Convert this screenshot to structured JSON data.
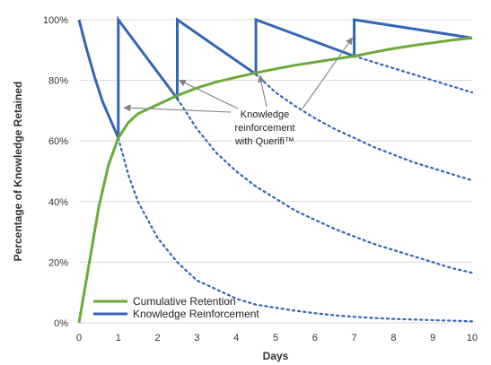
{
  "chart_data": {
    "type": "line",
    "title": "",
    "xlabel": "Days",
    "ylabel": "Percentage of Knowledge Retained",
    "xlim": [
      0,
      10
    ],
    "ylim": [
      0,
      100
    ],
    "x_ticks": [
      "0",
      "1",
      "2",
      "3",
      "4",
      "5",
      "6",
      "7",
      "8",
      "9",
      "10"
    ],
    "y_ticks": [
      "0%",
      "20%",
      "40%",
      "60%",
      "80%",
      "100%"
    ],
    "grid": "horizontal",
    "legend_position": "bottom-left",
    "colors": {
      "cumulative": "#6aaa3a",
      "reinforcement": "#3565b5",
      "grid": "#d9d9d9"
    },
    "series": [
      {
        "name": "Cumulative Retention",
        "style": "solid",
        "x": [
          0,
          0.25,
          0.5,
          0.75,
          1.0,
          1.25,
          1.5,
          2.0,
          2.5,
          3.0,
          3.5,
          4.0,
          4.5,
          5.0,
          5.5,
          6.0,
          6.5,
          7.0,
          7.5,
          8.0,
          8.5,
          9.0,
          9.5,
          10.0
        ],
        "y": [
          0,
          19,
          38,
          52,
          61,
          66,
          69,
          72,
          75,
          77.5,
          79.5,
          81,
          82.5,
          83.8,
          85,
          86,
          87,
          88,
          89.3,
          90.5,
          91.5,
          92.4,
          93.3,
          94
        ]
      },
      {
        "name": "Knowledge Reinforcement",
        "style": "solid",
        "x": [
          0,
          0.2,
          0.4,
          0.6,
          0.8,
          1.0,
          1.0,
          2.5,
          2.5,
          4.5,
          4.5,
          7.0,
          7.0,
          10.0
        ],
        "y": [
          100,
          90,
          81,
          73,
          67,
          61,
          100,
          74,
          100,
          82,
          100,
          88,
          100,
          94
        ]
      }
    ],
    "decay_curves": [
      {
        "x": [
          1.0,
          1.25,
          1.5,
          2.0,
          2.5,
          3.0,
          3.5,
          4.0,
          4.5,
          5.0,
          5.5,
          6.0,
          6.5,
          7.0,
          7.5,
          8.0,
          8.5,
          9.0,
          9.5,
          10.0
        ],
        "y": [
          61,
          49,
          40,
          28,
          20,
          14,
          11,
          8,
          6,
          5,
          4,
          3.2,
          2.5,
          2,
          1.6,
          1.3,
          1.1,
          0.9,
          0.7,
          0.5
        ]
      },
      {
        "x": [
          2.5,
          3.0,
          3.5,
          4.0,
          4.5,
          5.0,
          5.5,
          6.0,
          6.5,
          7.0,
          7.5,
          8.0,
          8.5,
          9.0,
          9.5,
          10.0
        ],
        "y": [
          74,
          64,
          56,
          50,
          45,
          41,
          37,
          34,
          31,
          28.5,
          26,
          24,
          22,
          20,
          18,
          16.5
        ]
      },
      {
        "x": [
          4.5,
          5.0,
          5.5,
          6.0,
          6.5,
          7.0,
          7.5,
          8.0,
          8.5,
          9.0,
          9.5,
          10.0
        ],
        "y": [
          82,
          76,
          71.5,
          67.5,
          64,
          61,
          58,
          55.5,
          53,
          51,
          49,
          47
        ]
      },
      {
        "x": [
          7.0,
          7.5,
          8.0,
          8.5,
          9.0,
          9.5,
          10.0
        ],
        "y": [
          88,
          86,
          84,
          82,
          80,
          78,
          76
        ]
      }
    ],
    "annotation": {
      "lines": [
        "Knowledge",
        "reinforcement",
        "with Querifi™"
      ],
      "arrow_targets": [
        {
          "x": 1.15,
          "y": 71
        },
        {
          "x": 2.55,
          "y": 80
        },
        {
          "x": 4.6,
          "y": 81.5
        },
        {
          "x": 6.95,
          "y": 94
        }
      ]
    }
  }
}
